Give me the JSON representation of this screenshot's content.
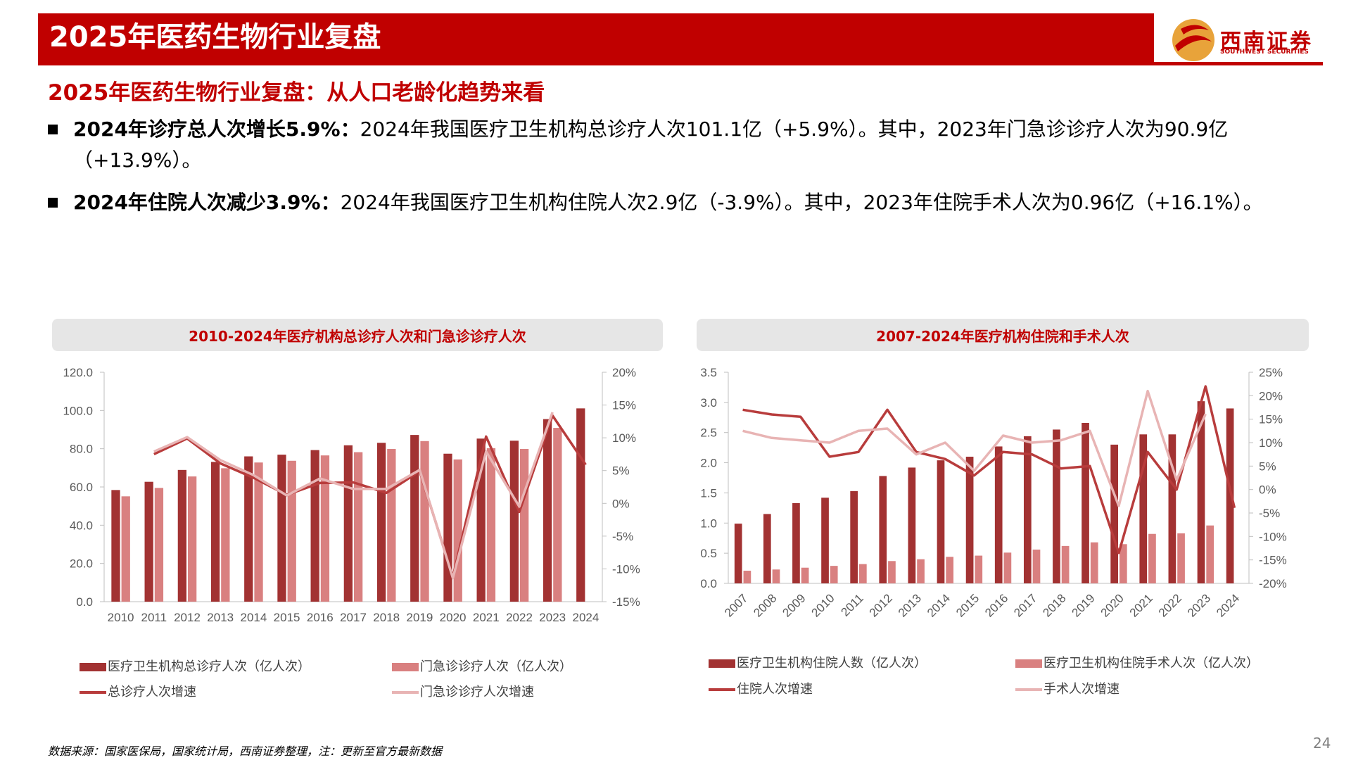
{
  "header": {
    "title": "2025年医药生物行业复盘"
  },
  "logo": {
    "cn": "西南证券",
    "en": "SOUTHWEST SECURITIES"
  },
  "subtitle": "2025年医药生物行业复盘：从人口老龄化趋势来看",
  "bullets": [
    {
      "bold": "2024年诊疗总人次增长5.9%：",
      "text": "2024年我国医疗卫生机构总诊疗人次101.1亿（+5.9%）。其中，2023年门急诊诊疗人次为90.9亿（+13.9%）。"
    },
    {
      "bold": "2024年住院人次减少3.9%：",
      "text": "2024年我国医疗卫生机构住院人次2.9亿（-3.9%）。其中，2023年住院手术人次为0.96亿（+16.1%）。"
    }
  ],
  "colors": {
    "dark": "#a23232",
    "light": "#d98080",
    "line_dark": "#b83c3c",
    "line_light": "#e8b4b4",
    "accent": "#c00000"
  },
  "chart_data": [
    {
      "type": "bar",
      "title": "2010-2024年医疗机构总诊疗人次和门急诊诊疗人次",
      "categories": [
        "2010",
        "2011",
        "2012",
        "2013",
        "2014",
        "2015",
        "2016",
        "2017",
        "2018",
        "2019",
        "2020",
        "2021",
        "2022",
        "2023",
        "2024"
      ],
      "ylim": [
        0,
        120
      ],
      "y2lim": [
        -15,
        20
      ],
      "y_ticks": [
        "0.0",
        "20.0",
        "40.0",
        "60.0",
        "80.0",
        "100.0",
        "120.0"
      ],
      "y2_ticks": [
        "-15%",
        "-10%",
        "-5%",
        "0%",
        "5%",
        "10%",
        "15%",
        "20%"
      ],
      "series": [
        {
          "name": "医疗卫生机构总诊疗人次（亿人次）",
          "kind": "bar",
          "axis": "left",
          "values": [
            58.4,
            62.7,
            68.9,
            73.1,
            76.0,
            76.9,
            79.3,
            81.8,
            83.1,
            87.2,
            77.4,
            85.3,
            84.2,
            95.5,
            101.1
          ]
        },
        {
          "name": "门急诊诊疗人次（亿人次）",
          "kind": "bar",
          "axis": "left",
          "values": [
            55.1,
            59.5,
            65.5,
            69.8,
            72.8,
            73.7,
            76.5,
            78.2,
            79.9,
            84.0,
            74.4,
            80.3,
            79.9,
            90.9,
            null
          ]
        },
        {
          "name": "总诊疗人次增速",
          "kind": "line",
          "axis": "right",
          "values": [
            null,
            7.5,
            9.9,
            6.1,
            3.9,
            1.3,
            3.1,
            3.2,
            1.6,
            4.9,
            -11.2,
            10.2,
            -1.3,
            13.4,
            5.9
          ]
        },
        {
          "name": "门急诊诊疗人次增速",
          "kind": "line",
          "axis": "right",
          "values": [
            null,
            7.9,
            10.1,
            6.6,
            4.3,
            1.2,
            3.8,
            2.2,
            2.2,
            5.1,
            -11.4,
            7.9,
            -0.5,
            13.9,
            null
          ]
        }
      ]
    },
    {
      "type": "bar",
      "title": "2007-2024年医疗机构住院和手术人次",
      "categories": [
        "2007",
        "2008",
        "2009",
        "2010",
        "2011",
        "2012",
        "2013",
        "2014",
        "2015",
        "2016",
        "2017",
        "2018",
        "2019",
        "2020",
        "2021",
        "2022",
        "2023",
        "2024"
      ],
      "ylim": [
        0,
        3.5
      ],
      "y2lim": [
        -20,
        25
      ],
      "y_ticks": [
        "0.0",
        "0.5",
        "1.0",
        "1.5",
        "2.0",
        "2.5",
        "3.0",
        "3.5"
      ],
      "y2_ticks": [
        "-20%",
        "-15%",
        "-10%",
        "-5%",
        "0%",
        "5%",
        "10%",
        "15%",
        "20%",
        "25%"
      ],
      "series": [
        {
          "name": "医疗卫生机构住院人数（亿人次）",
          "kind": "bar",
          "axis": "left",
          "values": [
            0.99,
            1.15,
            1.33,
            1.42,
            1.53,
            1.78,
            1.92,
            2.04,
            2.1,
            2.27,
            2.44,
            2.55,
            2.66,
            2.3,
            2.47,
            2.47,
            3.02,
            2.9
          ]
        },
        {
          "name": "医疗卫生机构住院手术人次（亿人次）",
          "kind": "bar",
          "axis": "left",
          "values": [
            0.21,
            0.23,
            0.26,
            0.29,
            0.32,
            0.37,
            0.4,
            0.44,
            0.46,
            0.51,
            0.56,
            0.62,
            0.68,
            0.65,
            0.82,
            0.83,
            0.96,
            null
          ]
        },
        {
          "name": "住院人次增速",
          "kind": "line",
          "axis": "right",
          "values": [
            17.0,
            16.0,
            15.5,
            7.0,
            8.0,
            17.0,
            8.0,
            6.5,
            3.0,
            8.0,
            7.5,
            4.5,
            5.0,
            -13.5,
            8.0,
            0.0,
            22.0,
            -3.9
          ]
        },
        {
          "name": "手术人次增速",
          "kind": "line",
          "axis": "right",
          "values": [
            12.5,
            11.0,
            10.5,
            10.0,
            12.5,
            13.0,
            7.5,
            10.0,
            4.0,
            11.5,
            10.0,
            10.5,
            12.5,
            -3.5,
            21.0,
            2.0,
            16.1,
            null
          ]
        }
      ]
    }
  ],
  "footer": {
    "source": "数据来源：国家医保局，国家统计局，西南证券整理，注：更新至官方最新数据",
    "page": "24"
  }
}
